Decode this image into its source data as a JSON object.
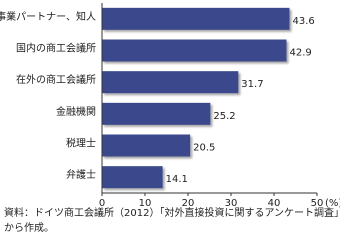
{
  "chart_data": {
    "type": "hbar",
    "categories": [
      "事業パートナー、知人",
      "国内の商工会議所",
      "在外の商工会議所",
      "金融機関",
      "税理士",
      "弁護士"
    ],
    "values": [
      43.6,
      42.9,
      31.7,
      25.2,
      20.5,
      14.1
    ],
    "color": "#3b4a8c",
    "xlim": [
      0,
      50
    ],
    "xticks": [
      0,
      10,
      20,
      30,
      40,
      50
    ],
    "unit": "(%)",
    "source": [
      "資料：ドイツ商工会議所（2012）「対外直接投資に関するアンケート調査」",
      "から作成。"
    ]
  }
}
